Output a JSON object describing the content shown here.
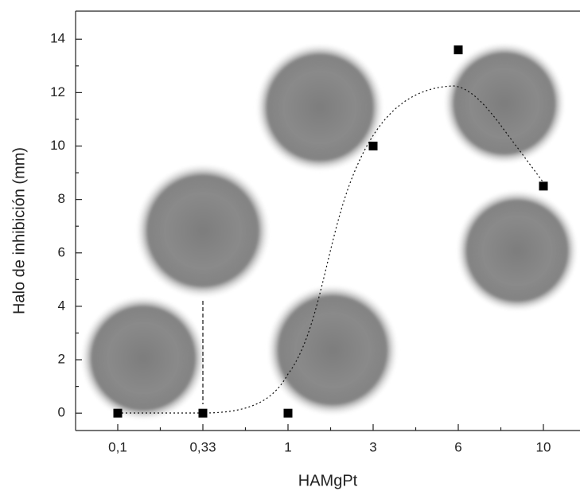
{
  "chart_data": {
    "type": "scatter",
    "x_label": "HAMgPt",
    "y_label": "Halo de inhibición (mm)",
    "categories": [
      "0,1",
      "0,33",
      "1",
      "3",
      "6",
      "10"
    ],
    "values": [
      0,
      0,
      0,
      10,
      13.6,
      8.5
    ],
    "color": "#000000",
    "ylim": [
      -0.65,
      15.05
    ],
    "yticks": [
      0,
      2,
      4,
      6,
      8,
      10,
      12,
      14
    ]
  }
}
